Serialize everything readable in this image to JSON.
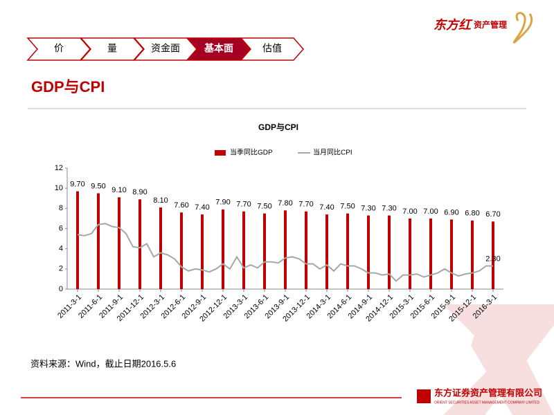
{
  "header": {
    "tabs": [
      "价",
      "量",
      "资金面",
      "基本面",
      "估值"
    ],
    "active_tab": 3
  },
  "section_title": "GDP与CPI",
  "logo": {
    "brand": "东方红",
    "sub": "资产管理"
  },
  "chart_data": {
    "type": "bar",
    "title": "GDP与CPI",
    "categories": [
      "2011-3-1",
      null,
      null,
      "2011-6-1",
      null,
      null,
      "2011-9-1",
      null,
      null,
      "2011-12-1",
      null,
      null,
      "2012-3-1",
      null,
      null,
      "2012-6-1",
      null,
      null,
      "2012-9-1",
      null,
      null,
      "2012-12-1",
      null,
      null,
      "2013-3-1",
      null,
      null,
      "2013-6-1",
      null,
      null,
      "2013-9-1",
      null,
      null,
      "2013-12-1",
      null,
      null,
      "2014-3-1",
      null,
      null,
      "2014-6-1",
      null,
      null,
      "2014-9-1",
      null,
      null,
      "2014-12-1",
      null,
      null,
      "2015-3-1",
      null,
      null,
      "2015-6-1",
      null,
      null,
      "2015-9-1",
      null,
      null,
      "2015-12-1",
      null,
      null,
      "2016-3-1"
    ],
    "series": [
      {
        "name": "当季同比GDP",
        "type": "bar",
        "color": "#c00000",
        "values": [
          9.7,
          null,
          null,
          9.5,
          null,
          null,
          9.1,
          null,
          null,
          8.9,
          null,
          null,
          8.1,
          null,
          null,
          7.6,
          null,
          null,
          7.4,
          null,
          null,
          7.9,
          null,
          null,
          7.7,
          null,
          null,
          7.5,
          null,
          null,
          7.8,
          null,
          null,
          7.7,
          null,
          null,
          7.4,
          null,
          null,
          7.5,
          null,
          null,
          7.3,
          null,
          null,
          7.3,
          null,
          null,
          7.0,
          null,
          null,
          7.0,
          null,
          null,
          6.9,
          null,
          null,
          6.8,
          null,
          null,
          6.7
        ],
        "value_labels": [
          "9.70",
          null,
          null,
          "9.50",
          null,
          null,
          "9.10",
          null,
          null,
          "8.90",
          null,
          null,
          "8.10",
          null,
          null,
          "7.60",
          null,
          null,
          "7.40",
          null,
          null,
          "7.90",
          null,
          null,
          "7.70",
          null,
          null,
          "7.50",
          null,
          null,
          "7.80",
          null,
          null,
          "7.70",
          null,
          null,
          "7.40",
          null,
          null,
          "7.50",
          null,
          null,
          "7.30",
          null,
          null,
          "7.30",
          null,
          null,
          "7.00",
          null,
          null,
          "7.00",
          null,
          null,
          "6.90",
          null,
          null,
          "6.80",
          null,
          null,
          "6.70"
        ]
      },
      {
        "name": "当月同比CPI",
        "type": "line",
        "color": "#a6a6a6",
        "values": [
          5.4,
          5.3,
          5.5,
          6.4,
          6.5,
          6.2,
          6.1,
          5.5,
          4.2,
          4.1,
          4.5,
          3.2,
          3.6,
          3.4,
          3.0,
          2.2,
          1.8,
          2.0,
          1.9,
          1.7,
          2.0,
          2.5,
          2.0,
          3.2,
          2.1,
          2.4,
          2.1,
          2.7,
          2.7,
          2.6,
          3.1,
          3.2,
          3.0,
          2.5,
          2.5,
          2.0,
          2.4,
          1.8,
          2.5,
          2.3,
          2.3,
          2.0,
          1.6,
          1.6,
          1.4,
          1.5,
          0.8,
          1.4,
          1.4,
          1.5,
          1.2,
          1.4,
          1.6,
          2.0,
          1.6,
          1.3,
          1.5,
          1.6,
          1.8,
          2.3,
          2.3
        ],
        "value_labels": [
          null,
          null,
          null,
          null,
          null,
          null,
          null,
          null,
          null,
          null,
          null,
          null,
          null,
          null,
          null,
          null,
          null,
          null,
          null,
          null,
          null,
          null,
          null,
          null,
          null,
          null,
          null,
          null,
          null,
          null,
          null,
          null,
          null,
          null,
          null,
          null,
          null,
          null,
          null,
          null,
          null,
          null,
          null,
          null,
          null,
          null,
          null,
          null,
          null,
          null,
          null,
          null,
          null,
          null,
          null,
          null,
          null,
          null,
          null,
          null,
          "2.30"
        ]
      }
    ],
    "ylim": [
      0,
      12
    ],
    "yticks": [
      0,
      2,
      4,
      6,
      8,
      10,
      12
    ],
    "legend": "top"
  },
  "source": "资料来源：Wind，截止日期2016.5.6",
  "footer": {
    "company": "东方证券资产管理有限公司",
    "company_en": "ORIENT SECURITIES ASSET MANAGEMENT COMPANY LIMITED"
  }
}
